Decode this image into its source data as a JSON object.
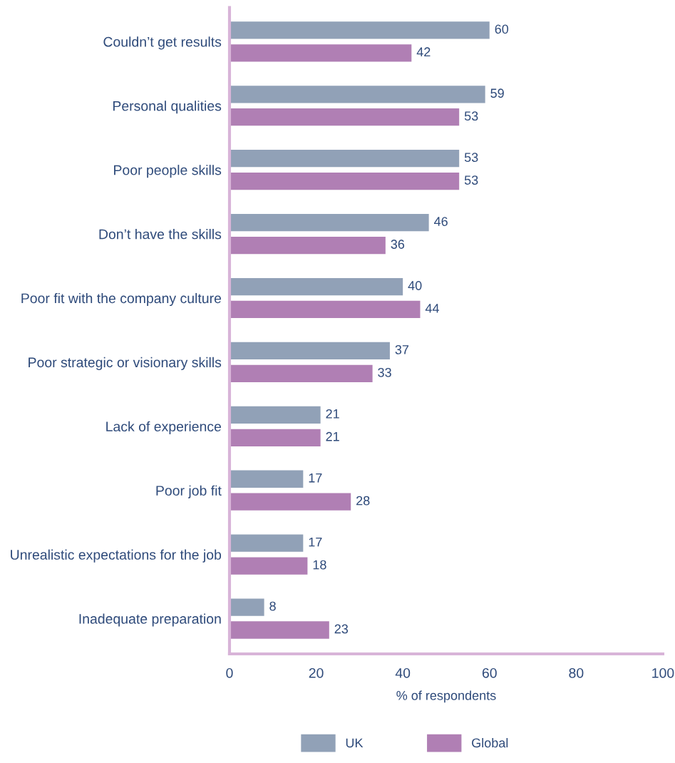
{
  "chart_data": {
    "type": "bar",
    "orientation": "horizontal",
    "xlabel": "% of respondents",
    "categories": [
      "Couldn’t get results",
      "Personal qualities",
      "Poor people skills",
      "Don’t have the skills",
      "Poor fit with the company culture",
      "Poor strategic or visionary skills",
      "Lack of experience",
      "Poor job fit",
      "Unrealistic expectations for the job",
      "Inadequate preparation"
    ],
    "series": [
      {
        "name": "UK",
        "color": "#91a1b7",
        "values": [
          60,
          59,
          53,
          46,
          40,
          37,
          21,
          17,
          17,
          8
        ]
      },
      {
        "name": "Global",
        "color": "#b07fb4",
        "values": [
          42,
          53,
          53,
          36,
          44,
          33,
          21,
          28,
          18,
          23
        ]
      }
    ],
    "xlim": [
      0,
      100
    ],
    "xticks": [
      0,
      20,
      40,
      60,
      80,
      100
    ],
    "grid": false,
    "data_labels": true,
    "legend": "bottom"
  }
}
